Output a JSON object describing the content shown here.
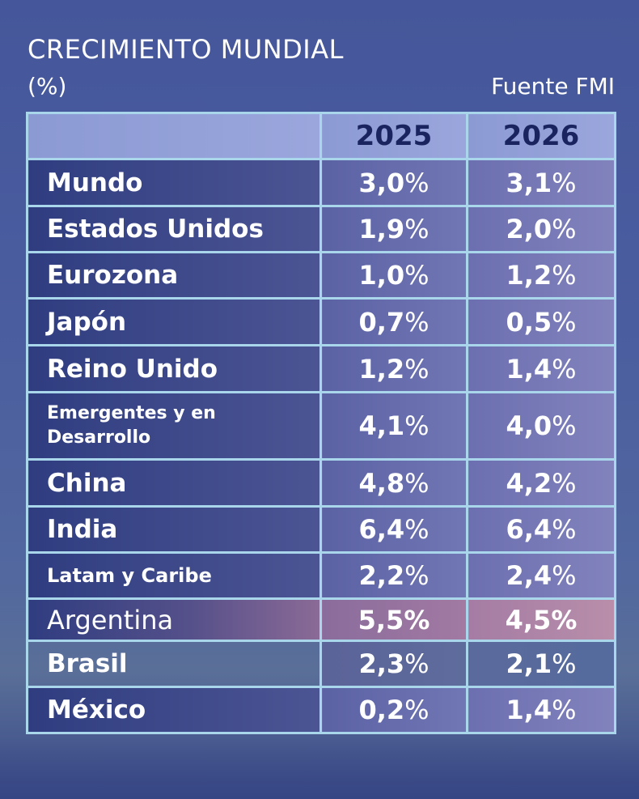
{
  "title": "CRECIMIENTO MUNDIAL",
  "unit": "(%)",
  "source": "Fuente FMI",
  "chart_data": {
    "type": "table",
    "title": "CRECIMIENTO MUNDIAL",
    "columns": [
      "",
      "2025",
      "2026"
    ],
    "rows": [
      {
        "label": "Mundo",
        "v2025": "3,0",
        "v2026": "3,1"
      },
      {
        "label": "Estados Unidos",
        "v2025": "1,9",
        "v2026": "2,0"
      },
      {
        "label": "Eurozona",
        "v2025": "1,0",
        "v2026": "1,2"
      },
      {
        "label": "Japón",
        "v2025": "0,7",
        "v2026": "0,5"
      },
      {
        "label": "Reino Unido",
        "v2025": "1,2",
        "v2026": "1,4"
      },
      {
        "label": "Emergentes y en Desarrollo",
        "v2025": "4,1",
        "v2026": "4,0"
      },
      {
        "label": "China",
        "v2025": "4,8",
        "v2026": "4,2"
      },
      {
        "label": "India",
        "v2025": "6,4",
        "v2026": "6,4"
      },
      {
        "label": "Latam y Caribe",
        "v2025": "2,2",
        "v2026": "2,4"
      },
      {
        "label": "Argentina",
        "v2025": "5,5",
        "v2026": "4,5"
      },
      {
        "label": "Brasil",
        "v2025": "2,3",
        "v2026": "2,1"
      },
      {
        "label": "México",
        "v2025": "0,2",
        "v2026": "1,4"
      }
    ],
    "pct_symbol": "%",
    "colors": {
      "header_text": "#1a2560",
      "border": "#a9d6ea",
      "highlight": "#b88eaa"
    }
  }
}
